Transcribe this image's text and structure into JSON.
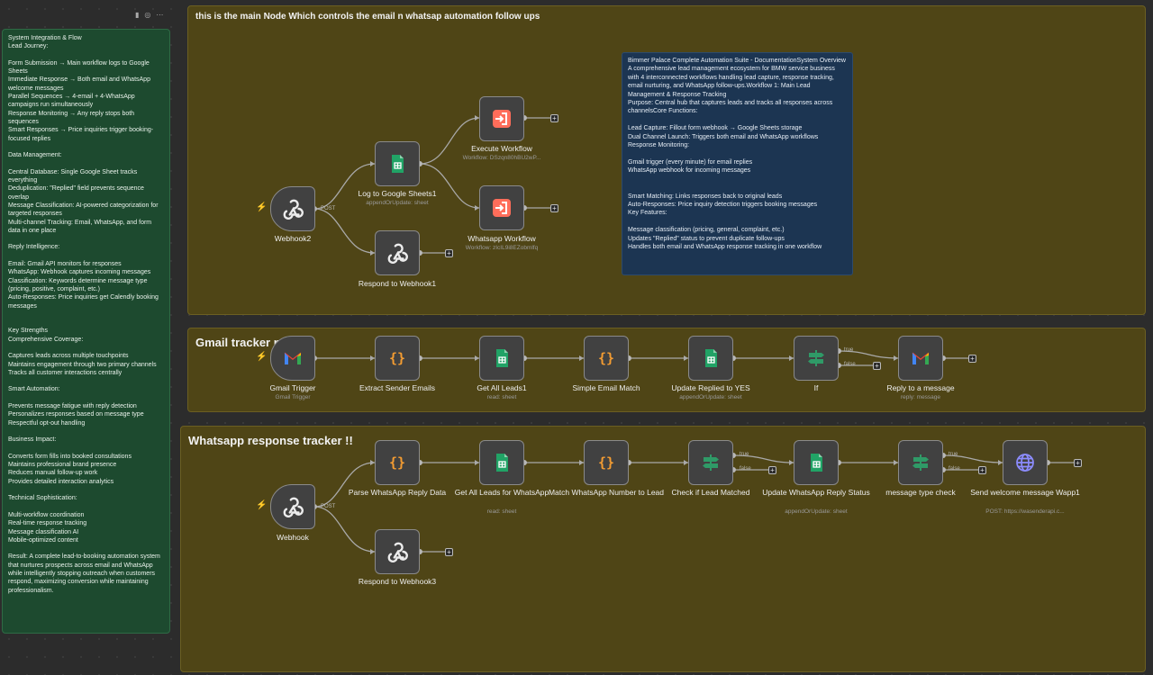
{
  "toolbar": {
    "icons": [
      "trash-icon",
      "color-icon",
      "more-icon"
    ]
  },
  "sticky_main": {
    "title": "this is the main Node Which controls the email n whatsap automation follow ups"
  },
  "sticky_gmail": {
    "title": "Gmail tracker no"
  },
  "sticky_whatsapp": {
    "title": "Whatsapp response tracker !!"
  },
  "green_note": "System Integration & Flow\nLead Journey:\n\nForm Submission → Main workflow logs to Google Sheets\nImmediate Response → Both email and WhatsApp welcome messages\nParallel Sequences → 4-email + 4-WhatsApp campaigns run simultaneously\nResponse Monitoring → Any reply stops both sequences\nSmart Responses → Price inquiries trigger booking-focused replies\n\nData Management:\n\nCentral Database: Single Google Sheet tracks everything\nDeduplication: \"Replied\" field prevents sequence overlap\nMessage Classification: AI-powered categorization for targeted responses\nMulti-channel Tracking: Email, WhatsApp, and form data in one place\n\nReply Intelligence:\n\nEmail: Gmail API monitors for responses\nWhatsApp: Webhook captures incoming messages\nClassification: Keywords determine message type (pricing, positive, complaint, etc.)\nAuto-Responses: Price inquiries get Calendly booking messages\n\n\nKey Strengths\nComprehensive Coverage:\n\nCaptures leads across multiple touchpoints\nMaintains engagement through two primary channels\nTracks all customer interactions centrally\n\nSmart Automation:\n\nPrevents message fatigue with reply detection\nPersonalizes responses based on message type\nRespectful opt-out handling\n\nBusiness Impact:\n\nConverts form fills into booked consultations\nMaintains professional brand presence\nReduces manual follow-up work\nProvides detailed interaction analytics\n\nTechnical Sophistication:\n\nMulti-workflow coordination\nReal-time response tracking\nMessage classification AI\nMobile-optimized content\n\nResult: A complete lead-to-booking automation system that nurtures prospects across email and WhatsApp while intelligently stopping outreach when customers respond, maximizing conversion while maintaining professionalism.",
  "blue_note": "Bimmer Palace Complete Automation Suite - DocumentationSystem Overview\nA comprehensive lead management ecosystem for BMW service business with 4 interconnected workflows handling lead capture, response tracking, email nurturing, and WhatsApp follow-ups.Workflow 1: Main Lead Management & Response Tracking\nPurpose: Central hub that captures leads and tracks all responses across channelsCore Functions:\n\nLead Capture: Fillout form webhook → Google Sheets storage\nDual Channel Launch: Triggers both email and WhatsApp workflows\nResponse Monitoring:\n\nGmail trigger (every minute) for email replies\nWhatsApp webhook for incoming messages\n\n\nSmart Matching: Links responses back to original leads\nAuto-Responses: Price inquiry detection triggers booking messages\nKey Features:\n\nMessage classification (pricing, general, complaint, etc.)\nUpdates \"Replied\" status to prevent duplicate follow-ups\nHandles both email and WhatsApp response tracking in one workflow",
  "edge_labels": {
    "post": "POST",
    "true": "true",
    "false": "false"
  },
  "nodes": {
    "webhook2": {
      "label": "Webhook2",
      "icon": "webhook-icon"
    },
    "log_sheets": {
      "label": "Log to Google Sheets1",
      "sub": "appendOrUpdate: sheet",
      "icon": "sheets-icon"
    },
    "respond_webhook1": {
      "label": "Respond to Webhook1",
      "icon": "webhook-icon"
    },
    "execute_workflow": {
      "label": "Execute Workflow",
      "sub": "Workflow: DSzqn80hBU2wP...",
      "icon": "execute-workflow-icon"
    },
    "whatsapp_workflow": {
      "label": "Whatsapp Workflow",
      "sub": "Workflow: zIcIL9i8EZobmlfq",
      "icon": "execute-workflow-icon"
    },
    "gmail_trigger": {
      "label": "Gmail Trigger",
      "sub": "Gmail Trigger",
      "icon": "gmail-icon"
    },
    "extract_emails": {
      "label": "Extract Sender Emails",
      "icon": "code-icon"
    },
    "get_all_leads1": {
      "label": "Get All Leads1",
      "sub": "read: sheet",
      "icon": "sheets-icon"
    },
    "simple_match": {
      "label": "Simple Email Match",
      "icon": "code-icon"
    },
    "update_replied": {
      "label": "Update Replied to YES",
      "sub": "appendOrUpdate: sheet",
      "icon": "sheets-icon"
    },
    "if_node": {
      "label": "If",
      "icon": "if-icon"
    },
    "reply_message": {
      "label": "Reply to a message",
      "sub": "reply: message",
      "icon": "gmail-icon"
    },
    "webhook": {
      "label": "Webhook",
      "icon": "webhook-icon"
    },
    "parse_wa": {
      "label": "Parse WhatsApp Reply Data",
      "icon": "code-icon"
    },
    "get_all_leads_wa": {
      "label": "Get All Leads for WhatsApp",
      "sub": "read: sheet",
      "icon": "sheets-icon"
    },
    "match_wa": {
      "label": "Match WhatsApp Number to Lead",
      "icon": "code-icon"
    },
    "check_lead": {
      "label": "Check if Lead Matched",
      "icon": "if-icon"
    },
    "update_wa_status": {
      "label": "Update WhatsApp Reply Status",
      "sub": "appendOrUpdate: sheet",
      "icon": "sheets-icon"
    },
    "msg_type_check": {
      "label": "message type check",
      "icon": "if-icon"
    },
    "send_welcome": {
      "label": "Send welcome message Wapp1",
      "sub": "POST: https://wasenderapi.c...",
      "icon": "http-request-icon"
    },
    "respond_webhook3": {
      "label": "Respond to Webhook3",
      "icon": "webhook-icon"
    }
  },
  "colors": {
    "sticky": "#4f4516",
    "green_note": "#1d4a2f",
    "blue_note": "#1c3552",
    "sheets": "#21a366",
    "code": "#f39c32",
    "execute": "#ff6d5a",
    "if": "#2f9a67",
    "http": "#7b7bff"
  }
}
